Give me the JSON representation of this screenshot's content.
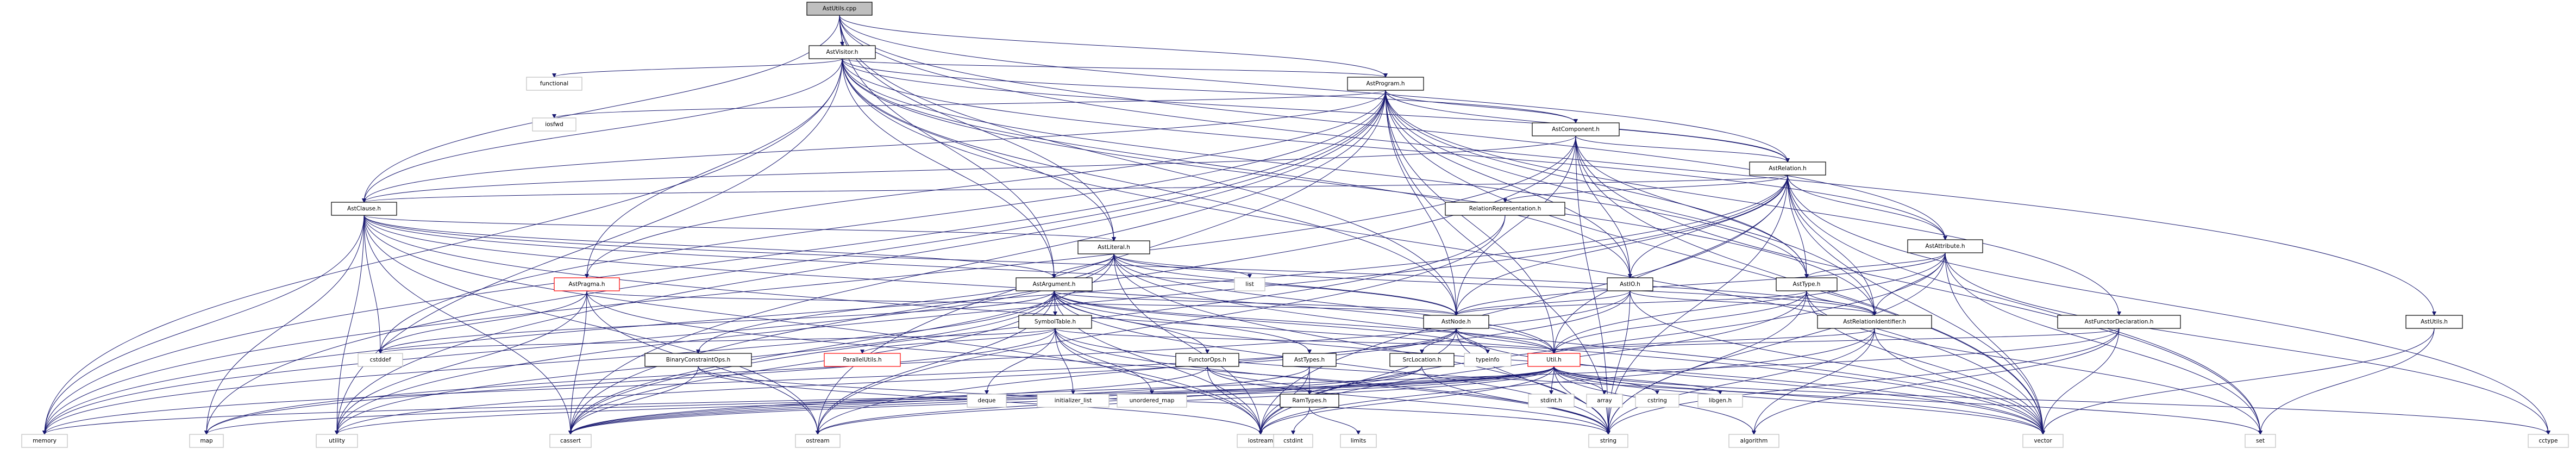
{
  "colors": {
    "edge": "#191970",
    "node_border": "#000000",
    "node_fill": "#ffffff",
    "root_fill": "#bfbfbf",
    "link_border": "#ff0000",
    "external_border": "#bfbfbf"
  },
  "nodes": [
    {
      "id": "n0",
      "label": "AstUtils.cpp",
      "kind": "root"
    },
    {
      "id": "n1",
      "label": "AstVisitor.h",
      "kind": "file"
    },
    {
      "id": "n2",
      "label": "AstProgram.h",
      "kind": "file"
    },
    {
      "id": "n3",
      "label": "AstComponent.h",
      "kind": "file"
    },
    {
      "id": "n4",
      "label": "AstRelation.h",
      "kind": "file"
    },
    {
      "id": "n5",
      "label": "AstClause.h",
      "kind": "file"
    },
    {
      "id": "n6",
      "label": "AstLiteral.h",
      "kind": "file"
    },
    {
      "id": "n7",
      "label": "AstAttribute.h",
      "kind": "file"
    },
    {
      "id": "n8",
      "label": "AstType.h",
      "kind": "file"
    },
    {
      "id": "n9",
      "label": "AstArgument.h",
      "kind": "file"
    },
    {
      "id": "n10",
      "label": "AstPragma.h",
      "kind": "link"
    },
    {
      "id": "n11",
      "label": "AstIO.h",
      "kind": "file"
    },
    {
      "id": "n12",
      "label": "AstNode.h",
      "kind": "file"
    },
    {
      "id": "n13",
      "label": "AstRelationIdentifier.h",
      "kind": "file"
    },
    {
      "id": "n14",
      "label": "AstFunctorDeclaration.h",
      "kind": "file"
    },
    {
      "id": "n15",
      "label": "AstUtils.h",
      "kind": "file"
    },
    {
      "id": "n16",
      "label": "RelationRepresentation.h",
      "kind": "file"
    },
    {
      "id": "n17",
      "label": "SymbolTable.h",
      "kind": "file"
    },
    {
      "id": "n18",
      "label": "ParallelUtils.h",
      "kind": "link"
    },
    {
      "id": "n19",
      "label": "BinaryConstraintOps.h",
      "kind": "file"
    },
    {
      "id": "n20",
      "label": "FunctorOps.h",
      "kind": "file"
    },
    {
      "id": "n21",
      "label": "AstTypes.h",
      "kind": "file"
    },
    {
      "id": "n22",
      "label": "SrcLocation.h",
      "kind": "file"
    },
    {
      "id": "n23",
      "label": "Util.h",
      "kind": "link"
    },
    {
      "id": "n24",
      "label": "RamTypes.h",
      "kind": "file"
    },
    {
      "id": "s_functional",
      "label": "functional",
      "kind": "system"
    },
    {
      "id": "s_iosfwd",
      "label": "iosfwd",
      "kind": "system"
    },
    {
      "id": "s_list",
      "label": "list",
      "kind": "system"
    },
    {
      "id": "s_cstddef",
      "label": "cstddef",
      "kind": "system"
    },
    {
      "id": "s_deque",
      "label": "deque",
      "kind": "system"
    },
    {
      "id": "s_initializer_list",
      "label": "initializer_list",
      "kind": "system"
    },
    {
      "id": "s_unordered_map",
      "label": "unordered_map",
      "kind": "system"
    },
    {
      "id": "s_typeinfo",
      "label": "typeinfo",
      "kind": "system"
    },
    {
      "id": "s_memory",
      "label": "memory",
      "kind": "system"
    },
    {
      "id": "s_map",
      "label": "map",
      "kind": "system"
    },
    {
      "id": "s_utility",
      "label": "utility",
      "kind": "system"
    },
    {
      "id": "s_cassert",
      "label": "cassert",
      "kind": "system"
    },
    {
      "id": "s_ostream",
      "label": "ostream",
      "kind": "system"
    },
    {
      "id": "s_iostream",
      "label": "iostream",
      "kind": "system"
    },
    {
      "id": "s_string",
      "label": "string",
      "kind": "system"
    },
    {
      "id": "s_algorithm",
      "label": "algorithm",
      "kind": "system"
    },
    {
      "id": "s_vector",
      "label": "vector",
      "kind": "system"
    },
    {
      "id": "s_set",
      "label": "set",
      "kind": "system"
    },
    {
      "id": "s_cctype",
      "label": "cctype",
      "kind": "system"
    },
    {
      "id": "s_stdint",
      "label": "stdint.h",
      "kind": "system"
    },
    {
      "id": "s_array",
      "label": "array",
      "kind": "system"
    },
    {
      "id": "s_cstring",
      "label": "cstring",
      "kind": "system"
    },
    {
      "id": "s_libgen",
      "label": "libgen.h",
      "kind": "system"
    },
    {
      "id": "s_cstdint",
      "label": "cstdint",
      "kind": "system"
    },
    {
      "id": "s_limits",
      "label": "limits",
      "kind": "system"
    }
  ],
  "edges": [
    [
      "n0",
      "n1"
    ],
    [
      "n0",
      "n2"
    ],
    [
      "n0",
      "n4"
    ],
    [
      "n0",
      "n5"
    ],
    [
      "n0",
      "n6"
    ],
    [
      "n0",
      "n9"
    ],
    [
      "n0",
      "n12"
    ],
    [
      "n0",
      "n15"
    ],
    [
      "n0",
      "n7"
    ],
    [
      "n1",
      "s_functional"
    ],
    [
      "n1",
      "s_memory"
    ],
    [
      "n1",
      "s_vector"
    ],
    [
      "n1",
      "n2"
    ],
    [
      "n1",
      "n3"
    ],
    [
      "n1",
      "n4"
    ],
    [
      "n1",
      "n5"
    ],
    [
      "n1",
      "n6"
    ],
    [
      "n1",
      "n7"
    ],
    [
      "n1",
      "n8"
    ],
    [
      "n1",
      "n9"
    ],
    [
      "n1",
      "n10"
    ],
    [
      "n1",
      "n11"
    ],
    [
      "n1",
      "n12"
    ],
    [
      "n1",
      "n13"
    ],
    [
      "n1",
      "s_utility"
    ],
    [
      "n2",
      "s_iosfwd"
    ],
    [
      "n2",
      "n3"
    ],
    [
      "n2",
      "n4"
    ],
    [
      "n2",
      "n5"
    ],
    [
      "n2",
      "n8"
    ],
    [
      "n2",
      "n10"
    ],
    [
      "n2",
      "n11"
    ],
    [
      "n2",
      "n12"
    ],
    [
      "n2",
      "n13"
    ],
    [
      "n2",
      "n14"
    ],
    [
      "n2",
      "n23"
    ],
    [
      "n2",
      "s_memory"
    ],
    [
      "n2",
      "s_map"
    ],
    [
      "n2",
      "s_vector"
    ],
    [
      "n2",
      "s_string"
    ],
    [
      "n2",
      "s_cassert"
    ],
    [
      "n2",
      "s_utility"
    ],
    [
      "n2",
      "s_ostream"
    ],
    [
      "n2",
      "s_cstddef"
    ],
    [
      "n3",
      "n4"
    ],
    [
      "n3",
      "n5"
    ],
    [
      "n3",
      "n8"
    ],
    [
      "n3",
      "n11"
    ],
    [
      "n3",
      "n12"
    ],
    [
      "n3",
      "s_memory"
    ],
    [
      "n3",
      "s_vector"
    ],
    [
      "n3",
      "s_string"
    ],
    [
      "n3",
      "s_set"
    ],
    [
      "n3",
      "s_cassert"
    ],
    [
      "n4",
      "n5"
    ],
    [
      "n4",
      "n7"
    ],
    [
      "n4",
      "n8"
    ],
    [
      "n4",
      "n11"
    ],
    [
      "n4",
      "n12"
    ],
    [
      "n4",
      "n13"
    ],
    [
      "n4",
      "n16"
    ],
    [
      "n4",
      "n23"
    ],
    [
      "n4",
      "s_memory"
    ],
    [
      "n4",
      "s_vector"
    ],
    [
      "n4",
      "s_set"
    ],
    [
      "n4",
      "s_string"
    ],
    [
      "n4",
      "s_cctype"
    ],
    [
      "n4",
      "s_iostream"
    ],
    [
      "n4",
      "s_utility"
    ],
    [
      "n5",
      "n6"
    ],
    [
      "n5",
      "n9"
    ],
    [
      "n5",
      "n12"
    ],
    [
      "n5",
      "n13"
    ],
    [
      "n5",
      "n23"
    ],
    [
      "n5",
      "s_memory"
    ],
    [
      "n5",
      "s_map"
    ],
    [
      "n5",
      "s_vector"
    ],
    [
      "n5",
      "s_cstddef"
    ],
    [
      "n5",
      "s_cassert"
    ],
    [
      "n5",
      "s_utility"
    ],
    [
      "n5",
      "s_iostream"
    ],
    [
      "n5",
      "s_ostream"
    ],
    [
      "n6",
      "n9"
    ],
    [
      "n6",
      "n12"
    ],
    [
      "n6",
      "n13"
    ],
    [
      "n6",
      "n19"
    ],
    [
      "n6",
      "n23"
    ],
    [
      "n6",
      "s_list"
    ],
    [
      "n6",
      "s_memory"
    ],
    [
      "n6",
      "s_vector"
    ],
    [
      "n6",
      "s_string"
    ],
    [
      "n6",
      "s_iostream"
    ],
    [
      "n6",
      "s_cassert"
    ],
    [
      "n7",
      "n8"
    ],
    [
      "n7",
      "n12"
    ],
    [
      "n7",
      "n13"
    ],
    [
      "n7",
      "n23"
    ],
    [
      "n7",
      "s_vector"
    ],
    [
      "n7",
      "s_set"
    ],
    [
      "n7",
      "s_string"
    ],
    [
      "n7",
      "s_iostream"
    ],
    [
      "n7",
      "s_cctype"
    ],
    [
      "n8",
      "n12"
    ],
    [
      "n8",
      "n13"
    ],
    [
      "n8",
      "n23"
    ],
    [
      "n8",
      "s_set"
    ],
    [
      "n8",
      "s_string"
    ],
    [
      "n8",
      "s_vector"
    ],
    [
      "n8",
      "s_iostream"
    ],
    [
      "n9",
      "n12"
    ],
    [
      "n9",
      "n17"
    ],
    [
      "n9",
      "n20"
    ],
    [
      "n9",
      "n21"
    ],
    [
      "n9",
      "n23"
    ],
    [
      "n9",
      "s_memory"
    ],
    [
      "n9",
      "s_vector"
    ],
    [
      "n9",
      "s_string"
    ],
    [
      "n9",
      "s_cstddef"
    ],
    [
      "n9",
      "s_cassert"
    ],
    [
      "n9",
      "s_utility"
    ],
    [
      "n9",
      "s_iostream"
    ],
    [
      "n9",
      "s_ostream"
    ],
    [
      "n9",
      "s_typeinfo"
    ],
    [
      "n10",
      "n12"
    ],
    [
      "n10",
      "s_string"
    ],
    [
      "n10",
      "s_utility"
    ],
    [
      "n10",
      "s_ostream"
    ],
    [
      "n10",
      "s_cassert"
    ],
    [
      "n10",
      "s_cstddef"
    ],
    [
      "n11",
      "n12"
    ],
    [
      "n11",
      "n13"
    ],
    [
      "n11",
      "s_map"
    ],
    [
      "n11",
      "s_string"
    ],
    [
      "n11",
      "s_ostream"
    ],
    [
      "n11",
      "s_vector"
    ],
    [
      "n12",
      "n22"
    ],
    [
      "n12",
      "n23"
    ],
    [
      "n12",
      "s_memory"
    ],
    [
      "n12",
      "s_vector"
    ],
    [
      "n12",
      "s_string"
    ],
    [
      "n12",
      "s_typeinfo"
    ],
    [
      "n12",
      "s_iostream"
    ],
    [
      "n12",
      "s_utility"
    ],
    [
      "n13",
      "n23"
    ],
    [
      "n13",
      "s_string"
    ],
    [
      "n13",
      "s_vector"
    ],
    [
      "n13",
      "s_iostream"
    ],
    [
      "n13",
      "s_algorithm"
    ],
    [
      "n14",
      "n23"
    ],
    [
      "n14",
      "s_string"
    ],
    [
      "n14",
      "s_vector"
    ],
    [
      "n14",
      "s_algorithm"
    ],
    [
      "n14",
      "s_cassert"
    ],
    [
      "n15",
      "s_vector"
    ],
    [
      "n15",
      "s_set"
    ],
    [
      "n16",
      "s_ostream"
    ],
    [
      "n16",
      "s_cassert"
    ],
    [
      "n17",
      "n18"
    ],
    [
      "n17",
      "n23"
    ],
    [
      "n17",
      "s_deque"
    ],
    [
      "n17",
      "s_initializer_list"
    ],
    [
      "n17",
      "s_unordered_map"
    ],
    [
      "n17",
      "s_iostream"
    ],
    [
      "n17",
      "s_string"
    ],
    [
      "n17",
      "s_cstddef"
    ],
    [
      "n17",
      "s_vector"
    ],
    [
      "n17",
      "s_map"
    ],
    [
      "n19",
      "s_string"
    ],
    [
      "n19",
      "s_cassert"
    ],
    [
      "n19",
      "s_iostream"
    ],
    [
      "n20",
      "n24"
    ],
    [
      "n20",
      "s_string"
    ],
    [
      "n20",
      "s_cassert"
    ],
    [
      "n20",
      "s_iostream"
    ],
    [
      "n21",
      "n24"
    ],
    [
      "n21",
      "s_cassert"
    ],
    [
      "n21",
      "s_iostream"
    ],
    [
      "n22",
      "s_string"
    ],
    [
      "n22",
      "s_ostream"
    ],
    [
      "n22",
      "s_cassert"
    ],
    [
      "n23",
      "s_memory"
    ],
    [
      "n23",
      "s_vector"
    ],
    [
      "n23",
      "s_set"
    ],
    [
      "n23",
      "s_map"
    ],
    [
      "n23",
      "s_string"
    ],
    [
      "n23",
      "s_utility"
    ],
    [
      "n23",
      "s_array"
    ],
    [
      "n23",
      "s_cstring"
    ],
    [
      "n23",
      "s_libgen"
    ],
    [
      "n23",
      "s_stdint"
    ],
    [
      "n23",
      "s_algorithm"
    ],
    [
      "n23",
      "s_iostream"
    ],
    [
      "n23",
      "s_cctype"
    ],
    [
      "n23",
      "s_cassert"
    ],
    [
      "n23",
      "s_ostream"
    ],
    [
      "n23",
      "n24"
    ],
    [
      "n24",
      "s_cstdint"
    ],
    [
      "n24",
      "s_limits"
    ]
  ]
}
